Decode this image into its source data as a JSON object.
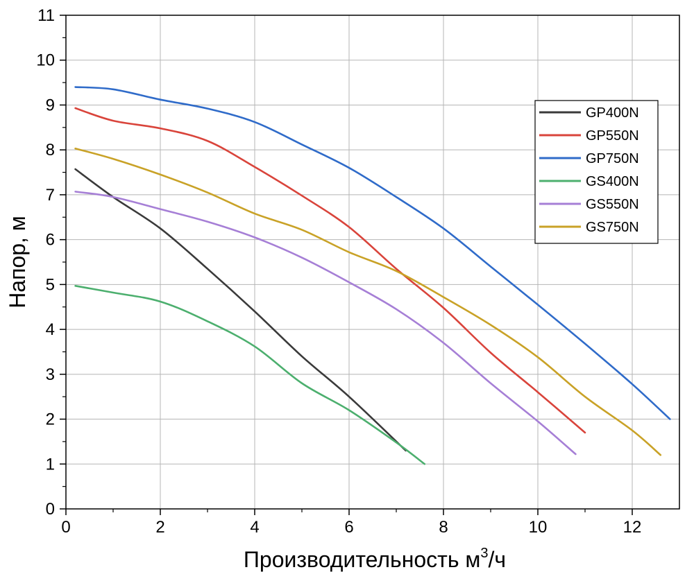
{
  "chart_data": {
    "type": "line",
    "title": "",
    "xlabel": "Производительность м",
    "xlabel_sup": "3",
    "xlabel_tail": "/ч",
    "ylabel": "Напор, м",
    "xlim": [
      0,
      13
    ],
    "ylim": [
      0,
      11
    ],
    "grid": true,
    "legend_position": "upper-right",
    "x_ticks": [
      0,
      2,
      4,
      6,
      8,
      10,
      12
    ],
    "y_ticks": [
      0,
      1,
      2,
      3,
      4,
      5,
      6,
      7,
      8,
      9,
      10,
      11
    ],
    "series": [
      {
        "name": "GP400N",
        "color": "#3a3a3a",
        "x": [
          0.2,
          1.0,
          2.0,
          3.0,
          4.0,
          5.0,
          6.0,
          7.2
        ],
        "y": [
          7.57,
          6.95,
          6.25,
          5.35,
          4.4,
          3.4,
          2.5,
          1.3
        ]
      },
      {
        "name": "GP550N",
        "color": "#d9443b",
        "x": [
          0.2,
          1.0,
          2.0,
          3.0,
          4.0,
          5.0,
          6.0,
          7.0,
          8.0,
          9.0,
          10.0,
          11.0
        ],
        "y": [
          8.93,
          8.65,
          8.48,
          8.2,
          7.62,
          6.98,
          6.28,
          5.35,
          4.48,
          3.48,
          2.6,
          1.7
        ]
      },
      {
        "name": "GP750N",
        "color": "#2f6bc9",
        "x": [
          0.2,
          1.0,
          2.0,
          3.0,
          4.0,
          5.0,
          6.0,
          7.0,
          8.0,
          9.0,
          10.0,
          11.0,
          12.0,
          12.8
        ],
        "y": [
          9.4,
          9.35,
          9.12,
          8.92,
          8.62,
          8.12,
          7.6,
          6.95,
          6.25,
          5.4,
          4.55,
          3.68,
          2.78,
          2.0
        ]
      },
      {
        "name": "GS400N",
        "color": "#4caf6e",
        "x": [
          0.2,
          1.0,
          2.0,
          3.0,
          4.0,
          5.0,
          6.0,
          7.0,
          7.6
        ],
        "y": [
          4.97,
          4.82,
          4.62,
          4.18,
          3.62,
          2.8,
          2.2,
          1.48,
          1.0
        ]
      },
      {
        "name": "GS550N",
        "color": "#a67fd6",
        "x": [
          0.2,
          1.0,
          2.0,
          3.0,
          4.0,
          5.0,
          6.0,
          7.0,
          8.0,
          9.0,
          10.0,
          10.8
        ],
        "y": [
          7.07,
          6.95,
          6.68,
          6.4,
          6.05,
          5.6,
          5.05,
          4.45,
          3.7,
          2.8,
          1.95,
          1.22
        ]
      },
      {
        "name": "GS750N",
        "color": "#c9a227",
        "x": [
          0.2,
          1.0,
          2.0,
          3.0,
          4.0,
          5.0,
          6.0,
          7.0,
          8.0,
          9.0,
          10.0,
          11.0,
          12.0,
          12.6
        ],
        "y": [
          8.03,
          7.8,
          7.45,
          7.05,
          6.58,
          6.22,
          5.72,
          5.3,
          4.72,
          4.1,
          3.38,
          2.5,
          1.75,
          1.2
        ]
      }
    ]
  }
}
